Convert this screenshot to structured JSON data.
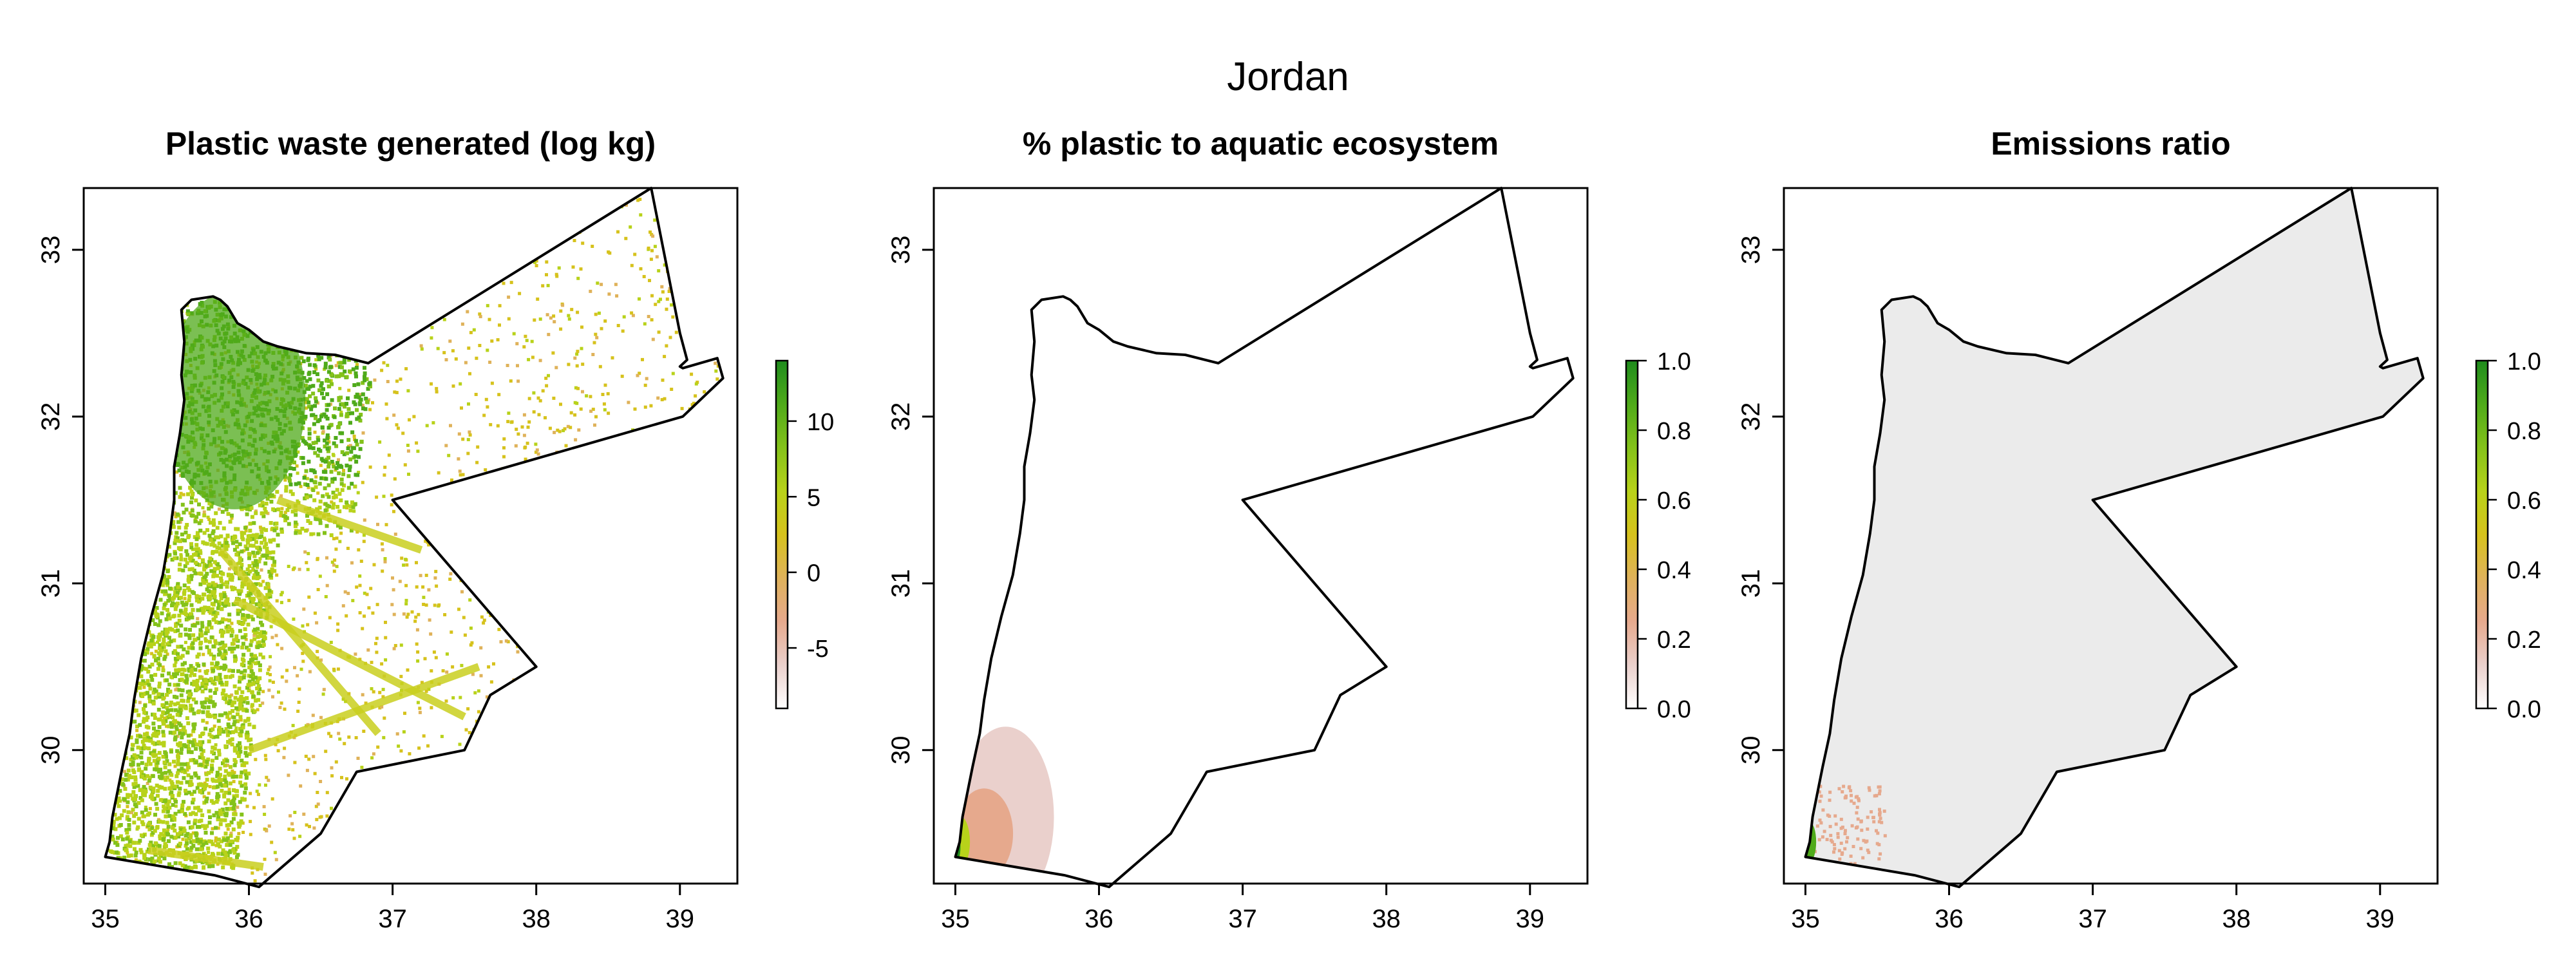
{
  "figure": {
    "title": "Jordan"
  },
  "panels": [
    {
      "id": "waste",
      "title": "Plastic waste generated (log kg)",
      "fill_style": "waste",
      "legend": {
        "ticks": [
          "10",
          "5",
          "0",
          "-5"
        ],
        "tick_values": [
          10,
          5,
          0,
          -5
        ],
        "min": -9,
        "max": 14
      }
    },
    {
      "id": "aquatic",
      "title": "% plastic to aquatic ecosystem",
      "fill_style": "aquatic",
      "legend": {
        "ticks": [
          "1.0",
          "0.8",
          "0.6",
          "0.4",
          "0.2",
          "0.0"
        ],
        "tick_values": [
          1.0,
          0.8,
          0.6,
          0.4,
          0.2,
          0.0
        ],
        "min": 0,
        "max": 1
      }
    },
    {
      "id": "emissions",
      "title": "Emissions ratio",
      "fill_style": "emissions",
      "legend": {
        "ticks": [
          "1.0",
          "0.8",
          "0.6",
          "0.4",
          "0.2",
          "0.0"
        ],
        "tick_values": [
          1.0,
          0.8,
          0.6,
          0.4,
          0.2,
          0.0
        ],
        "min": 0,
        "max": 1
      }
    }
  ],
  "axes": {
    "x_ticks": [
      "35",
      "36",
      "37",
      "38",
      "39"
    ],
    "x_values": [
      35,
      36,
      37,
      38,
      39
    ],
    "y_ticks": [
      "30",
      "31",
      "32",
      "33"
    ],
    "y_values": [
      30,
      31,
      32,
      33
    ],
    "xlim": [
      34.85,
      39.4
    ],
    "ylim": [
      29.2,
      33.37
    ]
  },
  "colors": {
    "scale": [
      "#ffffff",
      "#ead0cc",
      "#e6a98d",
      "#dfb25a",
      "#d6c21c",
      "#b8d21a",
      "#84c21a",
      "#4faa1a",
      "#1f8c1d"
    ],
    "outline": "#000000",
    "background_gray": "#ebebeb"
  },
  "boundary": {
    "lonlat": [
      [
        35.0,
        29.36
      ],
      [
        35.03,
        29.45
      ],
      [
        35.05,
        29.6
      ],
      [
        35.12,
        29.9
      ],
      [
        35.17,
        30.1
      ],
      [
        35.2,
        30.3
      ],
      [
        35.25,
        30.55
      ],
      [
        35.32,
        30.8
      ],
      [
        35.4,
        31.05
      ],
      [
        35.45,
        31.3
      ],
      [
        35.48,
        31.5
      ],
      [
        35.48,
        31.7
      ],
      [
        35.52,
        31.9
      ],
      [
        35.55,
        32.1
      ],
      [
        35.53,
        32.25
      ],
      [
        35.55,
        32.45
      ],
      [
        35.53,
        32.64
      ],
      [
        35.6,
        32.7
      ],
      [
        35.75,
        32.72
      ],
      [
        35.8,
        32.7
      ],
      [
        35.85,
        32.66
      ],
      [
        35.92,
        32.56
      ],
      [
        36.0,
        32.52
      ],
      [
        36.1,
        32.45
      ],
      [
        36.2,
        32.42
      ],
      [
        36.4,
        32.38
      ],
      [
        36.6,
        32.37
      ],
      [
        36.83,
        32.32
      ],
      [
        38.8,
        33.37
      ],
      [
        39.0,
        32.5
      ],
      [
        39.05,
        32.34
      ],
      [
        39.0,
        32.3
      ],
      [
        39.02,
        32.29
      ],
      [
        39.26,
        32.35
      ],
      [
        39.3,
        32.23
      ],
      [
        39.02,
        32.0
      ],
      [
        37.0,
        31.5
      ],
      [
        38.0,
        30.5
      ],
      [
        37.68,
        30.33
      ],
      [
        37.5,
        30.0
      ],
      [
        36.75,
        29.87
      ],
      [
        36.5,
        29.5
      ],
      [
        36.07,
        29.18
      ],
      [
        35.76,
        29.25
      ],
      [
        35.0,
        29.36
      ]
    ]
  }
}
